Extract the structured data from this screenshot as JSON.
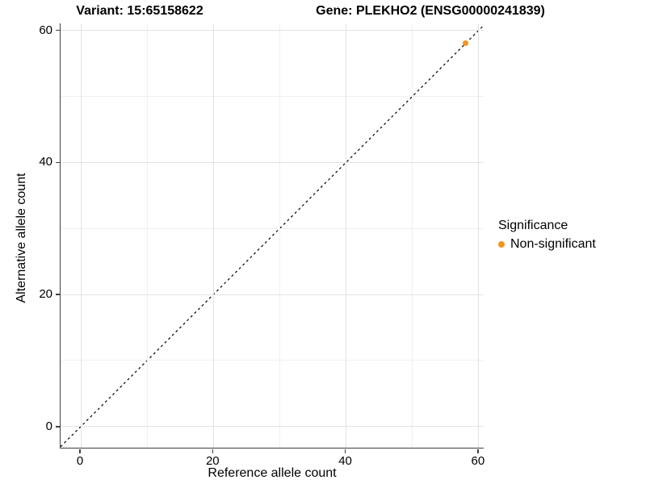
{
  "chart_data": {
    "type": "scatter",
    "title_left": "Variant: 15:65158622",
    "title_right": "Gene: PLEKHO2 (ENSG00000241839)",
    "xlabel": "Reference allele count",
    "ylabel": "Alternative allele count",
    "xlim": [
      -3.05,
      60.75
    ],
    "ylim": [
      -3.2,
      61.05
    ],
    "x_major_ticks": [
      0,
      20,
      40,
      60
    ],
    "y_major_ticks": [
      0,
      20,
      40,
      60
    ],
    "x_minor_ticks": [
      10,
      30,
      50
    ],
    "y_minor_ticks": [
      10,
      30,
      50
    ],
    "grid": {
      "major_color": "#E3E3E3",
      "minor_color": "#F0F0F0"
    },
    "identity_line": {
      "style": "dashed",
      "color": "#000000"
    },
    "series": [
      {
        "name": "Non-significant",
        "color": "#F7941D",
        "points": [
          {
            "x": 58,
            "y": 58
          }
        ]
      }
    ],
    "legend_title": "Significance",
    "legend_position": "right"
  }
}
